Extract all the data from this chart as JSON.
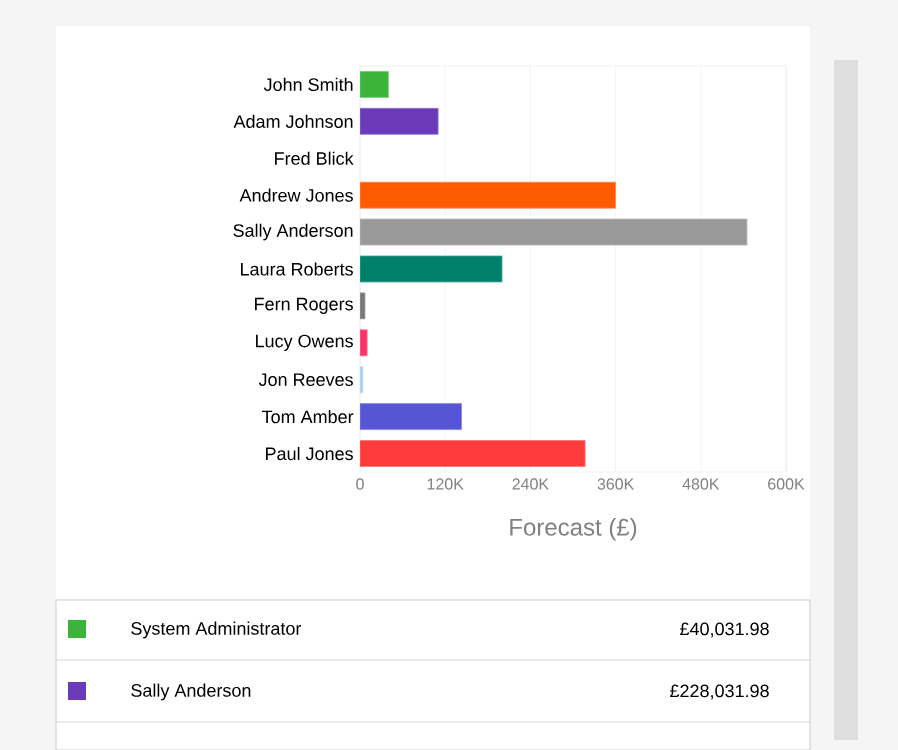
{
  "chart_data": {
    "type": "bar",
    "orientation": "horizontal",
    "xlabel": "Forecast (£)",
    "categories": [
      "John Smith",
      "Adam Johnson",
      "Fred Blick",
      "Andrew Jones",
      "Sally Anderson",
      "Laura Roberts",
      "Fern Rogers",
      "Lucy Owens",
      "Jon Reeves",
      "Tom Amber",
      "Paul Jones"
    ],
    "values": [
      40000,
      110000,
      null,
      360000,
      545000,
      200000,
      7000,
      10000,
      4000,
      143000,
      317000
    ],
    "colors": [
      "#3cb43c",
      "#6a3ab8",
      "#cccccc",
      "#ff5a00",
      "#999999",
      "#00806a",
      "#777777",
      "#ff3366",
      "#a0d0f0",
      "#5555d5",
      "#ff3b3b"
    ],
    "xlim": [
      0,
      600000
    ],
    "xticks": [
      0,
      {
        "value": 120000,
        "label": "120K"
      },
      {
        "value": 240000,
        "label": "240K"
      },
      {
        "value": 360000,
        "label": "360K"
      },
      {
        "value": 480000,
        "label": "480K"
      },
      {
        "value": 600000,
        "label": "600K"
      }
    ],
    "grid": "x",
    "annotations": [
      "System Administrator",
      "£40,031.98",
      "Sally Anderson",
      "£228,031.98"
    ]
  }
}
